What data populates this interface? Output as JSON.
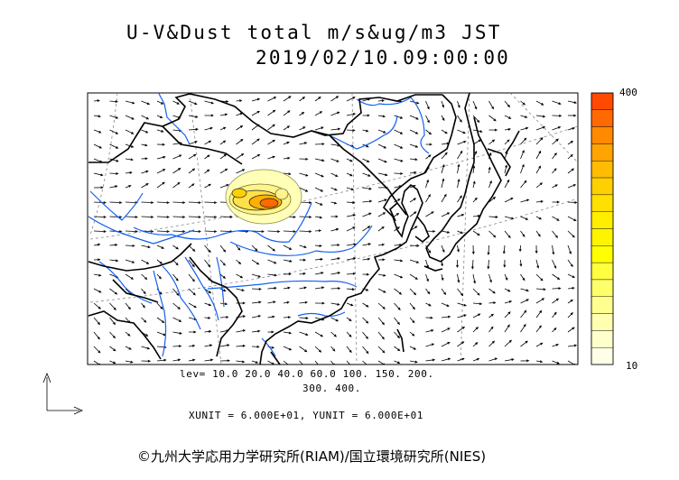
{
  "title": {
    "line1": "U-V&Dust total m/s&ug/m3 JST",
    "line2": "2019/02/10.09:00:00"
  },
  "legend": {
    "max_label": "400",
    "min_label": "10",
    "colors": [
      "#ff4a00",
      "#ff6a00",
      "#ff8a00",
      "#ffa400",
      "#ffbc00",
      "#ffd000",
      "#ffe000",
      "#ffee00",
      "#fff400",
      "#ffff00",
      "#ffff40",
      "#ffff6c",
      "#ffff90",
      "#ffffb0",
      "#ffffcc",
      "#ffffe8"
    ]
  },
  "levels": {
    "line1": "lev= 10.0 20.0 40.0 60.0 100. 150. 200.",
    "line2": "300. 400."
  },
  "units": "XUNIT = 6.000E+01, YUNIT = 6.000E+01",
  "copyright": "©九州大学応用力学研究所(RIAM)/国立環境研究所(NIES)",
  "colors": {
    "coastline": "#000000",
    "rivers": "#1560f0",
    "grid": "#888888",
    "vectors": "#000000"
  },
  "icons": [
    "axis-arrows-icon"
  ]
}
